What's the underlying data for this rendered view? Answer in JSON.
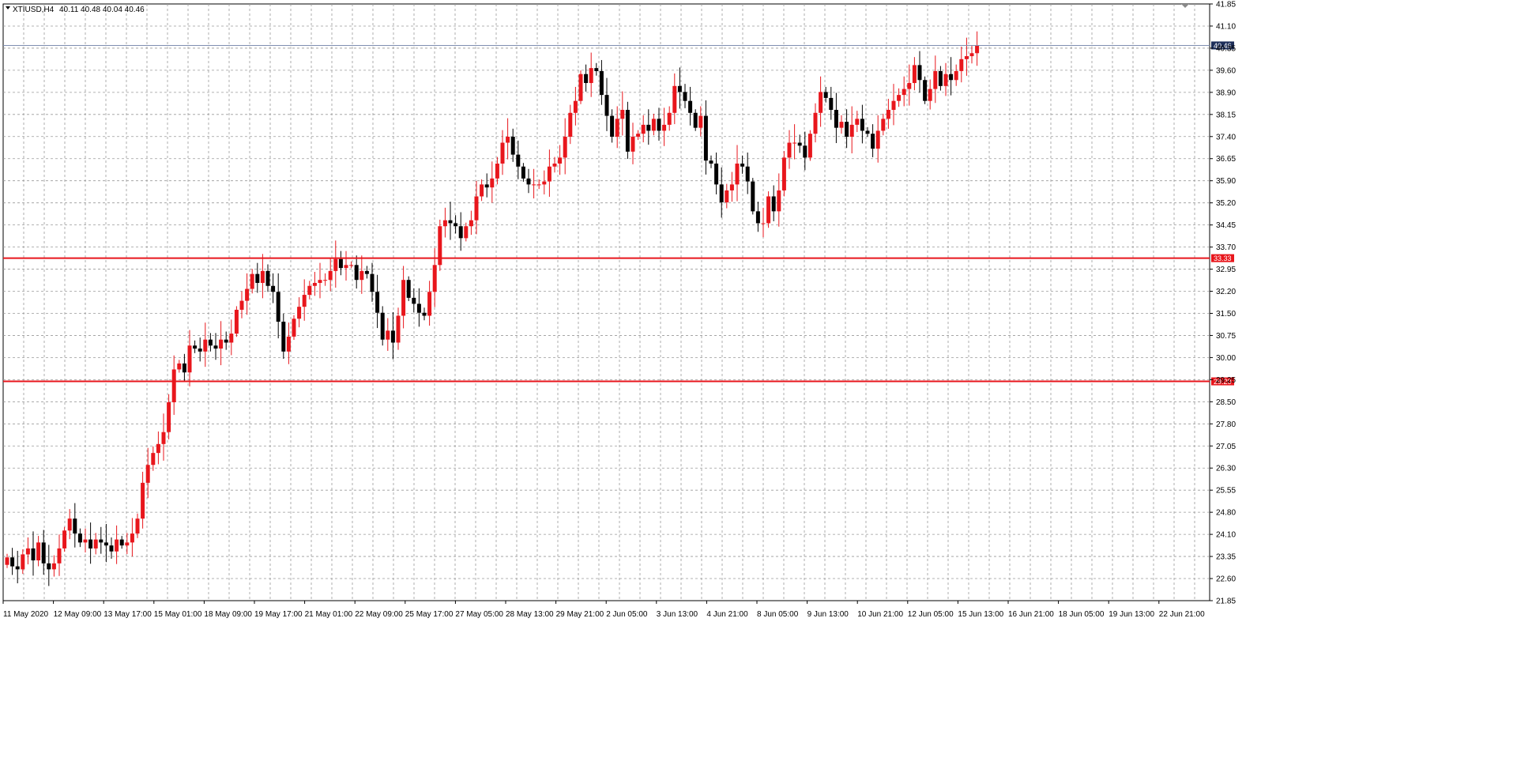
{
  "header": {
    "symbol": "XTIUSD,H4",
    "ohlc": "40.11 40.48 40.04 40.46"
  },
  "colors": {
    "background": "#ffffff",
    "grid": "#9a9a9a",
    "bull": "#e8161c",
    "bear": "#000000",
    "level_line": "#e8161c",
    "price_line": "#7f8fb0",
    "price_tag": "#1e2f5a"
  },
  "chart_data": {
    "type": "candlestick",
    "ylim": [
      21.85,
      41.85
    ],
    "y_ticks": [
      "41.85",
      "41.10",
      "40.35",
      "39.60",
      "38.90",
      "38.15",
      "37.40",
      "36.65",
      "35.90",
      "35.20",
      "34.45",
      "33.70",
      "32.95",
      "32.20",
      "31.50",
      "30.75",
      "30.00",
      "29.25",
      "28.50",
      "27.80",
      "27.05",
      "26.30",
      "25.55",
      "24.80",
      "24.10",
      "23.35",
      "22.60",
      "21.85"
    ],
    "x_ticks": [
      "11 May 2020",
      "12 May 09:00",
      "13 May 17:00",
      "15 May 01:00",
      "18 May 09:00",
      "19 May 17:00",
      "21 May 01:00",
      "22 May 09:00",
      "25 May 17:00",
      "27 May 05:00",
      "28 May 13:00",
      "29 May 21:00",
      "2 Jun 05:00",
      "3 Jun 13:00",
      "4 Jun 21:00",
      "8 Jun 05:00",
      "9 Jun 13:00",
      "10 Jun 21:00",
      "12 Jun 05:00",
      "15 Jun 13:00",
      "16 Jun 21:00",
      "18 Jun 05:00",
      "19 Jun 13:00",
      "22 Jun 21:00"
    ],
    "levels": [
      {
        "value": 33.33,
        "label": "33.33"
      },
      {
        "value": 29.2,
        "label": "29.20"
      }
    ],
    "current_price": {
      "value": 40.46,
      "label": "40.46"
    },
    "candles_close": [
      23.3,
      23.0,
      22.9,
      23.4,
      23.6,
      23.2,
      23.8,
      23.1,
      22.9,
      23.1,
      23.6,
      24.2,
      24.6,
      24.1,
      23.8,
      23.9,
      23.6,
      23.9,
      23.8,
      23.7,
      23.5,
      23.9,
      23.7,
      23.8,
      24.1,
      24.6,
      25.8,
      26.4,
      26.8,
      27.1,
      27.5,
      28.5,
      29.6,
      29.8,
      29.5,
      30.4,
      30.3,
      30.2,
      30.6,
      30.4,
      30.3,
      30.6,
      30.5,
      30.8,
      31.6,
      31.9,
      32.3,
      32.8,
      32.5,
      32.9,
      32.4,
      32.2,
      31.2,
      30.2,
      30.7,
      31.3,
      31.7,
      32.1,
      32.4,
      32.5,
      32.6,
      32.6,
      32.9,
      33.3,
      33.0,
      33.1,
      33.1,
      32.6,
      32.9,
      32.8,
      32.2,
      31.5,
      30.6,
      30.9,
      30.5,
      31.4,
      32.6,
      32.0,
      31.8,
      31.5,
      31.4,
      32.2,
      33.1,
      34.4,
      34.6,
      34.5,
      34.4,
      34.0,
      34.4,
      34.6,
      35.4,
      35.8,
      35.7,
      36.0,
      36.5,
      37.2,
      37.4,
      36.8,
      36.4,
      36.0,
      35.8,
      35.8,
      35.8,
      35.9,
      36.4,
      36.5,
      36.7,
      37.4,
      38.2,
      38.6,
      39.5,
      39.2,
      39.7,
      39.6,
      38.8,
      38.1,
      37.4,
      38.0,
      38.3,
      36.9,
      37.4,
      37.5,
      37.8,
      37.6,
      38.0,
      37.6,
      37.8,
      38.2,
      39.1,
      38.9,
      38.6,
      38.2,
      37.7,
      38.1,
      36.6,
      36.5,
      35.8,
      35.2,
      35.6,
      35.8,
      36.5,
      36.4,
      35.9,
      34.9,
      34.5,
      34.5,
      35.4,
      34.9,
      35.6,
      36.7,
      37.2,
      37.2,
      37.1,
      36.7,
      37.5,
      38.2,
      38.9,
      38.7,
      38.3,
      37.7,
      37.9,
      37.4,
      37.8,
      38.0,
      37.6,
      37.5,
      37.0,
      37.6,
      38.0,
      38.3,
      38.6,
      38.8,
      39.0,
      39.2,
      39.8,
      39.3,
      38.6,
      39.0,
      39.6,
      39.1,
      39.5,
      39.3,
      39.6,
      40.0,
      40.1,
      40.2,
      40.46
    ]
  }
}
